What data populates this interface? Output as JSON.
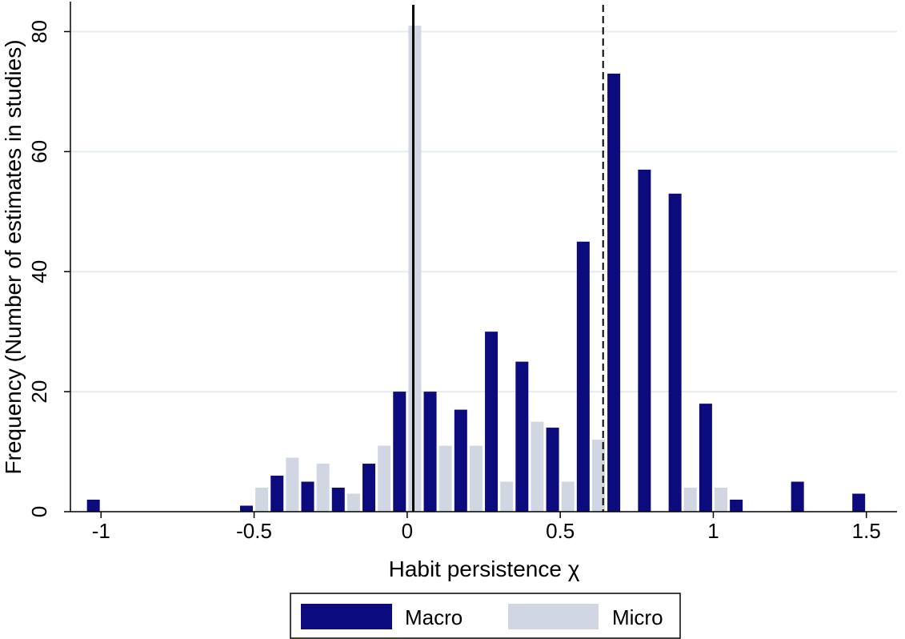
{
  "chart_data": {
    "type": "bar",
    "title": "",
    "xlabel": "Habit persistence χ",
    "ylabel": "Frequency (Number of estimates in studies)",
    "xlim": [
      -1.1,
      1.6
    ],
    "ylim": [
      0,
      85
    ],
    "x_ticks": [
      -1,
      -0.5,
      0,
      0.5,
      1,
      1.5
    ],
    "x_tick_labels": [
      "-1",
      "-0.5",
      "0",
      "0.5",
      "1",
      "1.5"
    ],
    "y_ticks": [
      0,
      20,
      40,
      60,
      80
    ],
    "y_tick_labels": [
      "0",
      "20",
      "40",
      "60",
      "80"
    ],
    "grid": "horizontal",
    "bin_width": 0.1,
    "x": [
      -1.0,
      -0.9,
      -0.8,
      -0.7,
      -0.6,
      -0.5,
      -0.4,
      -0.3,
      -0.2,
      -0.1,
      0.0,
      0.1,
      0.2,
      0.3,
      0.4,
      0.5,
      0.6,
      0.7,
      0.8,
      0.9,
      1.0,
      1.1,
      1.2,
      1.3,
      1.4,
      1.5
    ],
    "series": [
      {
        "name": "Macro",
        "color": "#0b0b7d",
        "values": [
          2,
          0,
          0,
          0,
          0,
          1,
          6,
          5,
          4,
          8,
          20,
          20,
          17,
          30,
          25,
          14,
          45,
          73,
          57,
          53,
          18,
          2,
          0,
          5,
          0,
          3
        ]
      },
      {
        "name": "Micro",
        "color": "#d0d6e2",
        "values": [
          0,
          0,
          0,
          0,
          0,
          4,
          9,
          8,
          3,
          11,
          81,
          11,
          11,
          5,
          15,
          5,
          12,
          0,
          0,
          4,
          4,
          0,
          0,
          0,
          0,
          0
        ]
      }
    ],
    "reference_lines": [
      {
        "x": 0.02,
        "style": "solid",
        "color": "#000000"
      },
      {
        "x": 0.64,
        "style": "dashed",
        "color": "#000000"
      }
    ],
    "legend": {
      "position": "bottom-center",
      "entries": [
        "Macro",
        "Micro"
      ]
    }
  },
  "colors": {
    "grid": "#e4ecf0",
    "axis": "#000000",
    "background": "#ffffff"
  }
}
